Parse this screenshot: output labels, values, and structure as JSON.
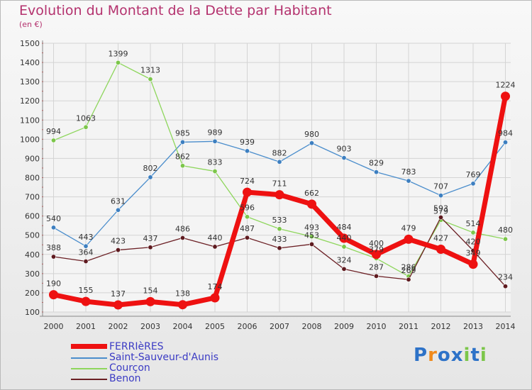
{
  "chart_data": {
    "type": "line",
    "title": "Evolution du Montant de la Dette par Habitant",
    "subtitle": "(en €)",
    "xlabel": "",
    "ylabel": "",
    "ylim": [
      100,
      1500
    ],
    "yticks": [
      100,
      200,
      300,
      400,
      500,
      600,
      700,
      800,
      900,
      1000,
      1100,
      1200,
      1300,
      1400,
      1500
    ],
    "categories": [
      "2000",
      "2001",
      "2002",
      "2003",
      "2004",
      "2005",
      "2006",
      "2007",
      "2008",
      "2009",
      "2010",
      "2011",
      "2012",
      "2013",
      "2014"
    ],
    "series": [
      {
        "name": "Saint-Sauveur-d'Aunis",
        "color": "#4a8dcc",
        "dot": "#3d7fc0",
        "width": "thin",
        "values": [
          540,
          443,
          631,
          802,
          985,
          989,
          939,
          882,
          980,
          903,
          829,
          783,
          707,
          769,
          984
        ]
      },
      {
        "name": "Courçon",
        "color": "#8ed65c",
        "dot": "#7cc64a",
        "width": "thin",
        "values": [
          994,
          1063,
          1399,
          1313,
          862,
          833,
          596,
          533,
          493,
          440,
          379,
          286,
          579,
          514,
          480
        ]
      },
      {
        "name": "Benon",
        "color": "#6b1f24",
        "dot": "#5e1a1f",
        "width": "thin",
        "values": [
          388,
          364,
          423,
          437,
          486,
          440,
          487,
          433,
          453,
          324,
          287,
          269,
          593,
          420,
          234
        ]
      },
      {
        "name": "FERRIèRES",
        "color": "#ee1111",
        "dot": "#ee1111",
        "width": "thick",
        "values": [
          190,
          155,
          137,
          154,
          138,
          174,
          724,
          711,
          662,
          484,
          400,
          479,
          427,
          349,
          1224
        ]
      }
    ],
    "legend": "bottom-left"
  },
  "brand": {
    "letters": [
      "P",
      "r",
      "o",
      "x",
      "i",
      "t",
      "i"
    ],
    "colors": [
      "#2d72c8",
      "#f08a1c",
      "#2d72c8",
      "#2d72c8",
      "#7cc64a",
      "#2d72c8",
      "#7cc64a"
    ]
  }
}
